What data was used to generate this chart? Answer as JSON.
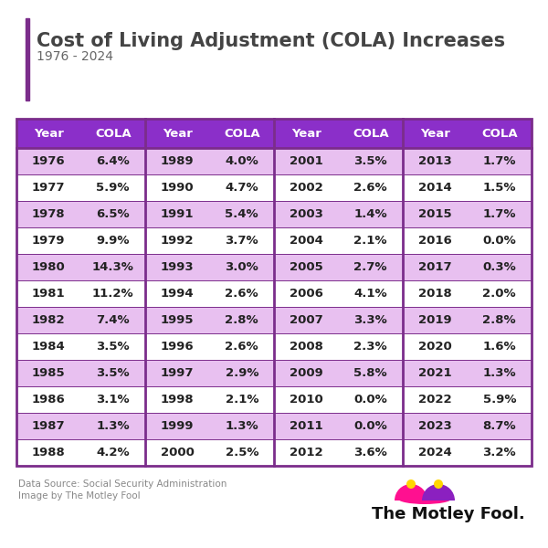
{
  "title": "Cost of Living Adjustment (COLA) Increases",
  "subtitle": "1976 - 2024",
  "header_bg": "#8B2FC9",
  "header_text_color": "#FFFFFF",
  "row_bg_odd": "#E8C0F0",
  "row_bg_even": "#FFFFFF",
  "border_color": "#7B2D8B",
  "text_color": "#222222",
  "accent_color": "#7B2D8B",
  "source_text1": "Data Source: Social Security Administration",
  "source_text2": "Image by The Motley Fool",
  "headers": [
    "Year",
    "COLA",
    "Year",
    "COLA",
    "Year",
    "COLA",
    "Year",
    "COLA"
  ],
  "rows": [
    [
      "1976",
      "6.4%",
      "1989",
      "4.0%",
      "2001",
      "3.5%",
      "2013",
      "1.7%"
    ],
    [
      "1977",
      "5.9%",
      "1990",
      "4.7%",
      "2002",
      "2.6%",
      "2014",
      "1.5%"
    ],
    [
      "1978",
      "6.5%",
      "1991",
      "5.4%",
      "2003",
      "1.4%",
      "2015",
      "1.7%"
    ],
    [
      "1979",
      "9.9%",
      "1992",
      "3.7%",
      "2004",
      "2.1%",
      "2016",
      "0.0%"
    ],
    [
      "1980",
      "14.3%",
      "1993",
      "3.0%",
      "2005",
      "2.7%",
      "2017",
      "0.3%"
    ],
    [
      "1981",
      "11.2%",
      "1994",
      "2.6%",
      "2006",
      "4.1%",
      "2018",
      "2.0%"
    ],
    [
      "1982",
      "7.4%",
      "1995",
      "2.8%",
      "2007",
      "3.3%",
      "2019",
      "2.8%"
    ],
    [
      "1984",
      "3.5%",
      "1996",
      "2.6%",
      "2008",
      "2.3%",
      "2020",
      "1.6%"
    ],
    [
      "1985",
      "3.5%",
      "1997",
      "2.9%",
      "2009",
      "5.8%",
      "2021",
      "1.3%"
    ],
    [
      "1986",
      "3.1%",
      "1998",
      "2.1%",
      "2010",
      "0.0%",
      "2022",
      "5.9%"
    ],
    [
      "1987",
      "1.3%",
      "1999",
      "1.3%",
      "2011",
      "0.0%",
      "2023",
      "8.7%"
    ],
    [
      "1988",
      "4.2%",
      "2000",
      "2.5%",
      "2012",
      "3.6%",
      "2024",
      "3.2%"
    ]
  ]
}
